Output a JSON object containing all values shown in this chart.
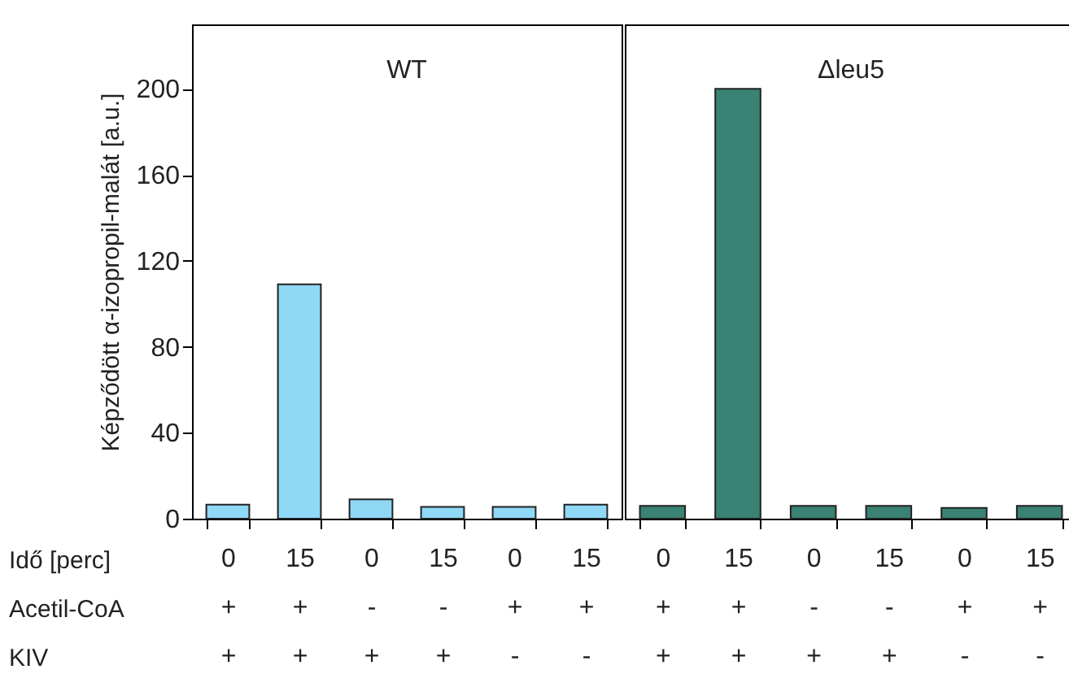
{
  "chart_data": [
    {
      "type": "bar",
      "title": "WT",
      "ylabel": "Képződött α-izopropil-malát [a.u.]",
      "xlabel": "Idő [perc]\nAcetil-CoA\nKIV",
      "categories": [
        "0\n+\n+",
        "15\n+\n+",
        "0\n-\n+",
        "15\n-\n+",
        "0\n+\n-",
        "15\n+\n-"
      ],
      "values": [
        6.5,
        109,
        9,
        5.5,
        5.5,
        6.5
      ],
      "color": "#8fd8f6",
      "ylim": [
        0,
        230
      ],
      "yticks": [
        0,
        40,
        80,
        120,
        160,
        200
      ],
      "grid": false
    },
    {
      "type": "bar",
      "title": "Δleu5",
      "categories": [
        "0\n+\n+",
        "15\n+\n+",
        "0\n-\n+",
        "15\n-\n+",
        "0\n+\n-",
        "15\n+\n-"
      ],
      "values": [
        6,
        200,
        6,
        6,
        5,
        6
      ],
      "color": "#3a8273",
      "ylim": [
        0,
        230
      ],
      "tick_labels": "x",
      "grid": false
    }
  ]
}
